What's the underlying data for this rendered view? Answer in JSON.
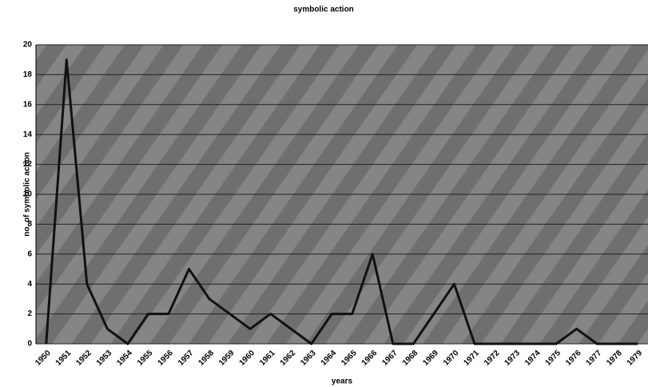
{
  "chart_data": {
    "type": "line",
    "title": "symbolic action",
    "x_label": "years",
    "y_label": "no. of symbolic action",
    "categories": [
      "1950",
      "1951",
      "1952",
      "1953",
      "1954",
      "1955",
      "1956",
      "1957",
      "1958",
      "1959",
      "1960",
      "1961",
      "1962",
      "1963",
      "1964",
      "1965",
      "1966",
      "1967",
      "1968",
      "1969",
      "1970",
      "1971",
      "1972",
      "1973",
      "1974",
      "1975",
      "1976",
      "1977",
      "1978",
      "1979"
    ],
    "series": [
      {
        "name": "symbolic action",
        "color": "#111111",
        "values": [
          0,
          19,
          4,
          1,
          0,
          2,
          2,
          5,
          3,
          2,
          1,
          2,
          1,
          0,
          2,
          2,
          6,
          0,
          0,
          2,
          4,
          0,
          0,
          0,
          0,
          0,
          1,
          0,
          0,
          0
        ]
      }
    ],
    "ylim": [
      0,
      20
    ],
    "yticks": [
      0,
      2,
      4,
      6,
      8,
      10,
      12,
      14,
      16,
      18,
      20
    ],
    "grid": true
  }
}
